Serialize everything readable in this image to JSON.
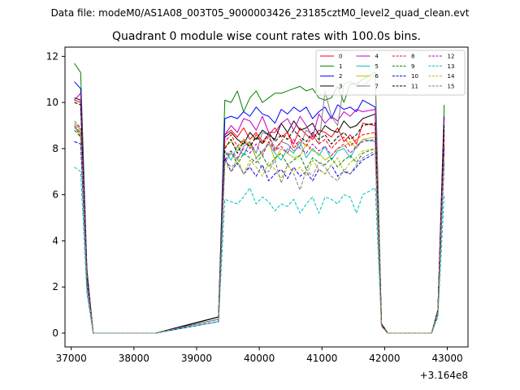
{
  "figure": {
    "suptitle": "Data file: modeM0/AS1A08_003T05_9000003426_23185cztM0_level2_quad_clean.evt"
  },
  "chart_data": {
    "type": "line",
    "title": "Quadrant 0 module wise count rates with 100.0s bins.",
    "xlabel": "",
    "ylabel": "",
    "x_offset_label": "+3.164e8",
    "xlim": [
      36900,
      43330
    ],
    "ylim": [
      -0.6,
      12.4
    ],
    "xticks": [
      37000,
      38000,
      39000,
      40000,
      41000,
      42000,
      43000
    ],
    "xtick_labels": [
      "37000",
      "38000",
      "39000",
      "40000",
      "41000",
      "42000",
      "43000"
    ],
    "yticks": [
      0,
      2,
      4,
      6,
      8,
      10,
      12
    ],
    "ytick_labels": [
      "0",
      "2",
      "4",
      "6",
      "8",
      "10",
      "12"
    ],
    "grid": false,
    "legend_position": "top-right",
    "legend_columns": 4,
    "segments": [
      {
        "start": 37050,
        "step": 100,
        "count": 14
      },
      {
        "start": 39350,
        "step": 100,
        "count": 24
      },
      {
        "start": 41850,
        "step": 100,
        "count": 12
      }
    ],
    "series": [
      {
        "name": "0",
        "color": "#ff0000",
        "dash": false,
        "values": [
          10.1,
          10.0,
          2.5,
          0,
          0,
          0,
          0,
          0,
          0,
          0,
          0,
          0,
          0,
          0,
          0.7,
          8.6,
          8.8,
          8.5,
          8.9,
          8.4,
          8.7,
          8.3,
          8.6,
          8.9,
          8.5,
          8.7,
          8.2,
          8.9,
          8.6,
          8.4,
          8.8,
          8.7,
          8.5,
          8.9,
          8.3,
          8.6,
          8.2,
          9.1,
          9.0,
          0.4,
          0,
          0,
          0,
          0,
          0,
          0,
          0,
          0,
          1.0,
          8.8
        ]
      },
      {
        "name": "1",
        "color": "#008000",
        "dash": false,
        "values": [
          11.7,
          11.3,
          2.8,
          0,
          0,
          0,
          0,
          0,
          0,
          0,
          0,
          0,
          0,
          0,
          0.7,
          10.1,
          10.0,
          10.5,
          9.6,
          10.2,
          10.5,
          10.0,
          10.2,
          10.4,
          10.4,
          10.5,
          10.6,
          10.7,
          10.5,
          10.6,
          10.2,
          10.1,
          10.2,
          10.7,
          10.0,
          10.8,
          10.8,
          11.0,
          11.3,
          0.4,
          0,
          0,
          0,
          0,
          0,
          0,
          0,
          0,
          1.0,
          9.9
        ]
      },
      {
        "name": "2",
        "color": "#0000ff",
        "dash": false,
        "values": [
          10.9,
          10.6,
          2.6,
          0,
          0,
          0,
          0,
          0,
          0,
          0,
          0,
          0,
          0,
          0,
          0.7,
          9.3,
          9.4,
          9.3,
          9.6,
          9.4,
          9.8,
          9.5,
          9.4,
          9.1,
          9.7,
          9.5,
          9.8,
          9.6,
          9.8,
          9.3,
          9.6,
          9.8,
          9.3,
          9.9,
          9.7,
          9.8,
          9.6,
          10.1,
          9.8,
          0.4,
          0,
          0,
          0,
          0,
          0,
          0,
          0,
          0,
          1.0,
          9.4
        ]
      },
      {
        "name": "3",
        "color": "#000000",
        "dash": false,
        "values": [
          10.2,
          10.1,
          2.5,
          0,
          0,
          0,
          0,
          0,
          0,
          0,
          0,
          0,
          0,
          0,
          0.7,
          8.5,
          8.7,
          8.4,
          8.2,
          8.7,
          8.4,
          8.8,
          8.6,
          8.4,
          9.1,
          8.7,
          9.2,
          8.8,
          8.9,
          9.1,
          8.6,
          9.0,
          8.8,
          8.7,
          9.2,
          8.9,
          9.0,
          9.3,
          9.5,
          0.4,
          0,
          0,
          0,
          0,
          0,
          0,
          0,
          0,
          1.0,
          9.3
        ]
      },
      {
        "name": "4",
        "color": "#bf00bf",
        "dash": false,
        "values": [
          10.1,
          10.4,
          2.6,
          0,
          0,
          0,
          0,
          0,
          0,
          0,
          0,
          0,
          0,
          0,
          0.6,
          8.6,
          9.0,
          8.7,
          9.3,
          9.2,
          8.8,
          9.4,
          8.7,
          8.7,
          9.1,
          9.3,
          8.8,
          9.4,
          9.0,
          8.5,
          9.5,
          9.1,
          9.4,
          9.2,
          9.6,
          9.4,
          9.7,
          9.6,
          9.7,
          0.4,
          0,
          0,
          0,
          0,
          0,
          0,
          0,
          0,
          1.0,
          9.3
        ]
      },
      {
        "name": "5",
        "color": "#00bfbf",
        "dash": false,
        "values": [
          8.9,
          8.7,
          2.2,
          0,
          0,
          0,
          0,
          0,
          0,
          0,
          0,
          0,
          0,
          0,
          0.6,
          7.9,
          7.5,
          8.1,
          7.7,
          8.3,
          7.6,
          7.9,
          8.2,
          7.8,
          7.5,
          8.0,
          7.8,
          8.3,
          7.6,
          8.0,
          7.7,
          8.1,
          7.5,
          7.9,
          8.0,
          7.6,
          8.1,
          8.4,
          8.3,
          0.3,
          0,
          0,
          0,
          0,
          0,
          0,
          0,
          0,
          0.9,
          8.0
        ]
      },
      {
        "name": "6",
        "color": "#bfbf00",
        "dash": false,
        "values": [
          9.0,
          8.6,
          2.2,
          0,
          0,
          0,
          0,
          0,
          0,
          0,
          0,
          0,
          0,
          0,
          0.6,
          8.1,
          8.3,
          7.9,
          8.4,
          8.2,
          7.6,
          7.8,
          8.3,
          7.5,
          8.0,
          7.8,
          7.6,
          7.7,
          8.2,
          7.9,
          7.8,
          7.5,
          7.7,
          8.0,
          8.1,
          8.3,
          8.0,
          8.4,
          8.5,
          0.3,
          0,
          0,
          0,
          0,
          0,
          0,
          0,
          0,
          0.9,
          8.1
        ]
      },
      {
        "name": "7",
        "color": "#7f7f7f",
        "dash": false,
        "values": [
          9.1,
          8.8,
          2.2,
          0,
          0,
          0,
          0,
          0,
          0,
          0,
          0,
          0,
          0,
          0,
          0.6,
          7.4,
          7.8,
          7.5,
          8.1,
          8.3,
          7.8,
          8.7,
          8.6,
          8.0,
          8.3,
          8.2,
          7.9,
          8.1,
          8.8,
          8.6,
          8.2,
          10.5,
          9.4,
          9.0,
          10.8,
          10.9,
          10.8,
          10.7,
          11.2,
          0.3,
          0,
          0,
          0,
          0,
          0,
          0,
          0,
          0,
          0.9,
          8.0
        ]
      },
      {
        "name": "8",
        "color": "#ff0000",
        "dash": true,
        "values": [
          9.0,
          8.5,
          2.1,
          0,
          0,
          0,
          0,
          0,
          0,
          0,
          0,
          0,
          0,
          0,
          0.6,
          8.3,
          8.6,
          8.1,
          8.4,
          8.0,
          8.6,
          8.2,
          8.5,
          7.9,
          8.3,
          8.7,
          8.0,
          8.4,
          8.1,
          8.6,
          8.2,
          8.4,
          8.0,
          8.3,
          8.5,
          8.1,
          8.4,
          8.6,
          8.7,
          0.3,
          0,
          0,
          0,
          0,
          0,
          0,
          0,
          0,
          0.9,
          8.4
        ]
      },
      {
        "name": "9",
        "color": "#008000",
        "dash": true,
        "values": [
          8.8,
          8.5,
          2.1,
          0,
          0,
          0,
          0,
          0,
          0,
          0,
          0,
          0,
          0,
          0,
          0.6,
          7.5,
          7.9,
          7.3,
          7.8,
          7.6,
          7.4,
          7.7,
          7.2,
          7.6,
          7.8,
          7.3,
          7.5,
          7.7,
          7.1,
          7.6,
          7.4,
          7.3,
          7.6,
          7.2,
          7.5,
          7.7,
          7.4,
          7.8,
          8.0,
          0.3,
          0,
          0,
          0,
          0,
          0,
          0,
          0,
          0,
          0.9,
          7.8
        ]
      },
      {
        "name": "10",
        "color": "#0000ff",
        "dash": true,
        "values": [
          8.3,
          8.2,
          2.0,
          0,
          0,
          0,
          0,
          0,
          0,
          0,
          0,
          0,
          0,
          0,
          0.5,
          7.6,
          7.0,
          7.4,
          6.9,
          7.2,
          6.8,
          7.3,
          6.6,
          6.9,
          7.1,
          6.7,
          7.2,
          6.8,
          7.0,
          6.6,
          7.1,
          6.9,
          7.3,
          6.8,
          7.0,
          6.9,
          7.2,
          7.5,
          7.8,
          0.3,
          0,
          0,
          0,
          0,
          0,
          0,
          0,
          0,
          0.8,
          7.4
        ]
      },
      {
        "name": "11",
        "color": "#000000",
        "dash": true,
        "values": [
          10.0,
          9.9,
          2.5,
          0,
          0,
          0,
          0,
          0,
          0,
          0,
          0,
          0,
          0,
          0,
          0.7,
          8.0,
          8.4,
          7.8,
          8.3,
          8.1,
          8.5,
          8.2,
          8.7,
          8.3,
          8.6,
          8.4,
          8.8,
          8.5,
          8.3,
          8.7,
          8.4,
          8.6,
          8.2,
          8.5,
          8.7,
          8.4,
          8.6,
          9.0,
          9.1,
          0.4,
          0,
          0,
          0,
          0,
          0,
          0,
          0,
          0,
          1.0,
          9.0
        ]
      },
      {
        "name": "12",
        "color": "#bf00bf",
        "dash": true,
        "values": [
          9.2,
          8.9,
          2.2,
          0,
          0,
          0,
          0,
          0,
          0,
          0,
          0,
          0,
          0,
          0,
          0.6,
          7.7,
          7.9,
          7.6,
          8.0,
          7.8,
          8.2,
          7.7,
          8.3,
          7.9,
          8.1,
          7.8,
          8.4,
          8.0,
          7.8,
          8.2,
          7.9,
          8.1,
          7.7,
          8.0,
          8.2,
          7.8,
          8.1,
          8.3,
          8.4,
          0.3,
          0,
          0,
          0,
          0,
          0,
          0,
          0,
          0,
          0.9,
          8.1
        ]
      },
      {
        "name": "13",
        "color": "#00bfbf",
        "dash": true,
        "values": [
          7.2,
          7.0,
          1.7,
          0,
          0,
          0,
          0,
          0,
          0,
          0,
          0,
          0,
          0,
          0,
          0.5,
          5.8,
          5.7,
          5.6,
          5.9,
          6.3,
          5.6,
          5.9,
          5.7,
          5.3,
          5.6,
          5.5,
          5.8,
          5.2,
          5.6,
          5.9,
          5.2,
          5.9,
          5.8,
          5.6,
          6.0,
          5.9,
          5.2,
          6.0,
          6.3,
          0.3,
          0,
          0,
          0,
          0,
          0,
          0,
          0,
          0,
          0.7,
          6.0
        ]
      },
      {
        "name": "14",
        "color": "#bfbf00",
        "dash": true,
        "values": [
          9.2,
          8.8,
          2.2,
          0,
          0,
          0,
          0,
          0,
          0,
          0,
          0,
          0,
          0,
          0,
          0.6,
          7.4,
          7.0,
          7.6,
          6.9,
          7.5,
          7.2,
          6.8,
          7.4,
          7.1,
          6.7,
          7.3,
          7.0,
          7.2,
          6.8,
          7.5,
          7.1,
          6.9,
          7.3,
          7.6,
          7.0,
          7.4,
          7.6,
          7.9,
          8.0,
          0.3,
          0,
          0,
          0,
          0,
          0,
          0,
          0,
          0,
          0.9,
          7.7
        ]
      },
      {
        "name": "15",
        "color": "#7f7f7f",
        "dash": true,
        "values": [
          9.0,
          8.7,
          2.2,
          0,
          0,
          0,
          0,
          0,
          0,
          0,
          0,
          0,
          0,
          0,
          0.6,
          7.5,
          7.2,
          7.4,
          6.9,
          7.3,
          7.6,
          7.1,
          7.0,
          7.5,
          6.5,
          7.3,
          6.9,
          6.2,
          7.1,
          6.8,
          7.4,
          7.2,
          6.8,
          6.6,
          7.1,
          6.9,
          7.3,
          7.6,
          7.9,
          0.3,
          0,
          0,
          0,
          0,
          0,
          0,
          0,
          0,
          0.9,
          7.8
        ]
      }
    ]
  }
}
